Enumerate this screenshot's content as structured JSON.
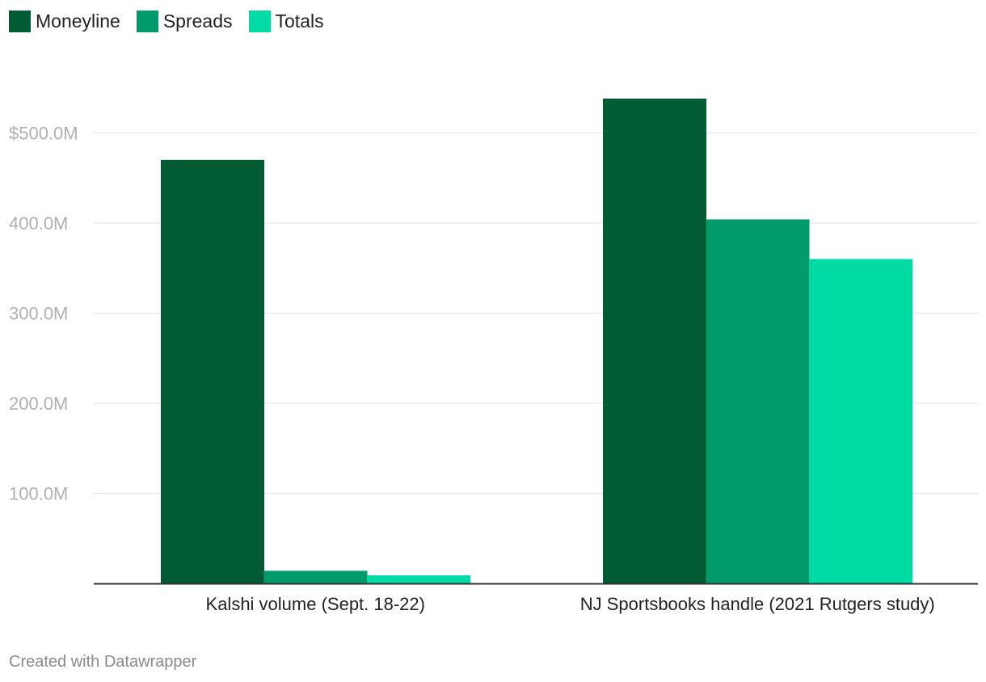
{
  "chart_data": {
    "type": "bar",
    "categories": [
      "Kalshi volume (Sept. 18-22)",
      "NJ Sportsbooks handle (2021 Rutgers study)"
    ],
    "series": [
      {
        "name": "Moneyline",
        "color": "#015b33",
        "values": [
          470,
          538
        ]
      },
      {
        "name": "Spreads",
        "color": "#019a6a",
        "values": [
          14,
          404
        ]
      },
      {
        "name": "Totals",
        "color": "#00dba6",
        "values": [
          9,
          360
        ]
      }
    ],
    "ylim": [
      0,
      540
    ],
    "yticks": [
      {
        "value": 100,
        "label": "100.0M"
      },
      {
        "value": 200,
        "label": "200.0M"
      },
      {
        "value": 300,
        "label": "300.0M"
      },
      {
        "value": 400,
        "label": "400.0M"
      },
      {
        "value": 500,
        "label": "$500.0M"
      }
    ],
    "grid": true,
    "legend_position": "top-left",
    "title": "",
    "xlabel": "",
    "ylabel": ""
  },
  "footer": {
    "credit": "Created with Datawrapper"
  }
}
